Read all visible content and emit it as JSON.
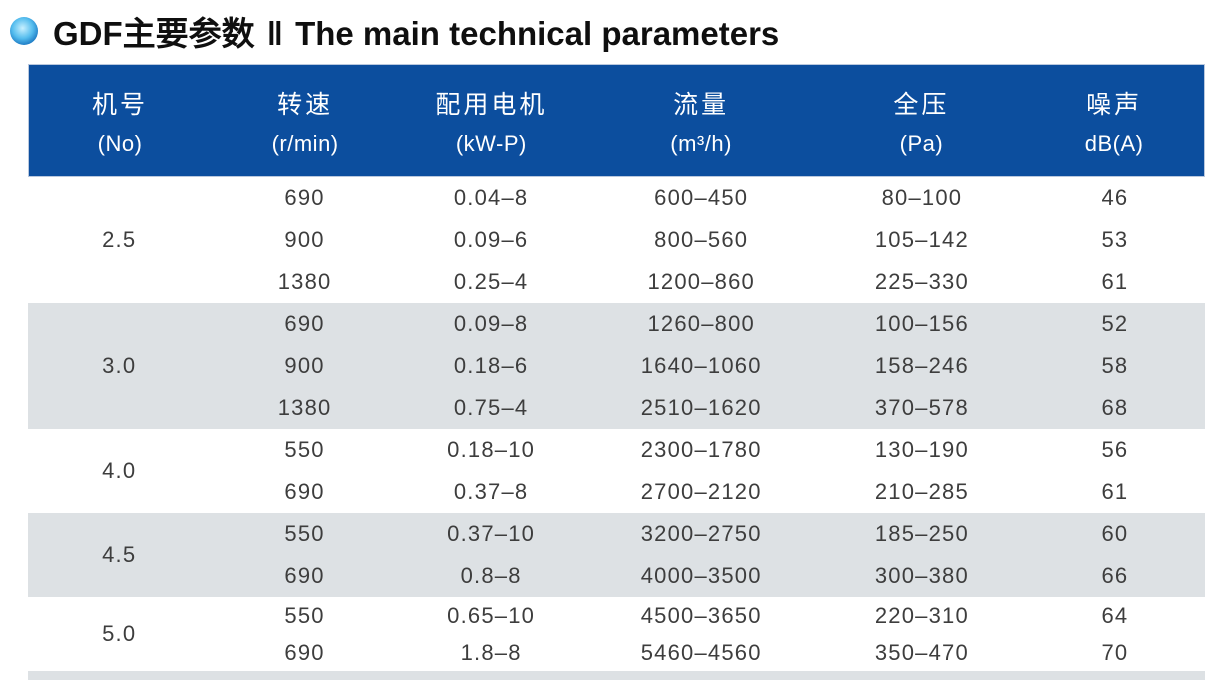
{
  "page": {
    "title_zh": "GDF主要参数",
    "title_sep": "‖",
    "title_en": "The main technical parameters",
    "bullet_icon": "blue-gradient-circle"
  },
  "colors": {
    "header_bg": "#0c4e9e",
    "band_gray": "#dde1e4",
    "band_white": "#ffffff",
    "header_text": "#ffffff",
    "body_text": "#3d3d3d",
    "bullet_blue": "#0a64b6"
  },
  "table": {
    "columns": [
      {
        "name_zh": "机号",
        "unit": "(No)"
      },
      {
        "name_zh": "转速",
        "unit": "(r/min)"
      },
      {
        "name_zh": "配用电机",
        "unit": "(kW-P)"
      },
      {
        "name_zh": "流量",
        "unit": "(m³/h)"
      },
      {
        "name_zh": "全压",
        "unit": "(Pa)"
      },
      {
        "name_zh": "噪声",
        "unit": "dB(A)"
      }
    ],
    "groups": [
      {
        "no": "2.5",
        "rows": [
          {
            "speed": "690",
            "motor": "0.04–8",
            "flow": "600–450",
            "pressure": "80–100",
            "noise": "46"
          },
          {
            "speed": "900",
            "motor": "0.09–6",
            "flow": "800–560",
            "pressure": "105–142",
            "noise": "53"
          },
          {
            "speed": "1380",
            "motor": "0.25–4",
            "flow": "1200–860",
            "pressure": "225–330",
            "noise": "61"
          }
        ]
      },
      {
        "no": "3.0",
        "rows": [
          {
            "speed": "690",
            "motor": "0.09–8",
            "flow": "1260–800",
            "pressure": "100–156",
            "noise": "52"
          },
          {
            "speed": "900",
            "motor": "0.18–6",
            "flow": "1640–1060",
            "pressure": "158–246",
            "noise": "58"
          },
          {
            "speed": "1380",
            "motor": "0.75–4",
            "flow": "2510–1620",
            "pressure": "370–578",
            "noise": "68"
          }
        ]
      },
      {
        "no": "4.0",
        "rows": [
          {
            "speed": "550",
            "motor": "0.18–10",
            "flow": "2300–1780",
            "pressure": "130–190",
            "noise": "56"
          },
          {
            "speed": "690",
            "motor": "0.37–8",
            "flow": "2700–2120",
            "pressure": "210–285",
            "noise": "61"
          }
        ]
      },
      {
        "no": "4.5",
        "rows": [
          {
            "speed": "550",
            "motor": "0.37–10",
            "flow": "3200–2750",
            "pressure": "185–250",
            "noise": "60"
          },
          {
            "speed": "690",
            "motor": "0.8–8",
            "flow": "4000–3500",
            "pressure": "300–380",
            "noise": "66"
          }
        ]
      },
      {
        "no": "5.0",
        "rows": [
          {
            "speed": "550",
            "motor": "0.65–10",
            "flow": "4500–3650",
            "pressure": "220–310",
            "noise": "64"
          },
          {
            "speed": "690",
            "motor": "1.8–8",
            "flow": "5460–4560",
            "pressure": "350–470",
            "noise": "70"
          }
        ]
      }
    ]
  }
}
